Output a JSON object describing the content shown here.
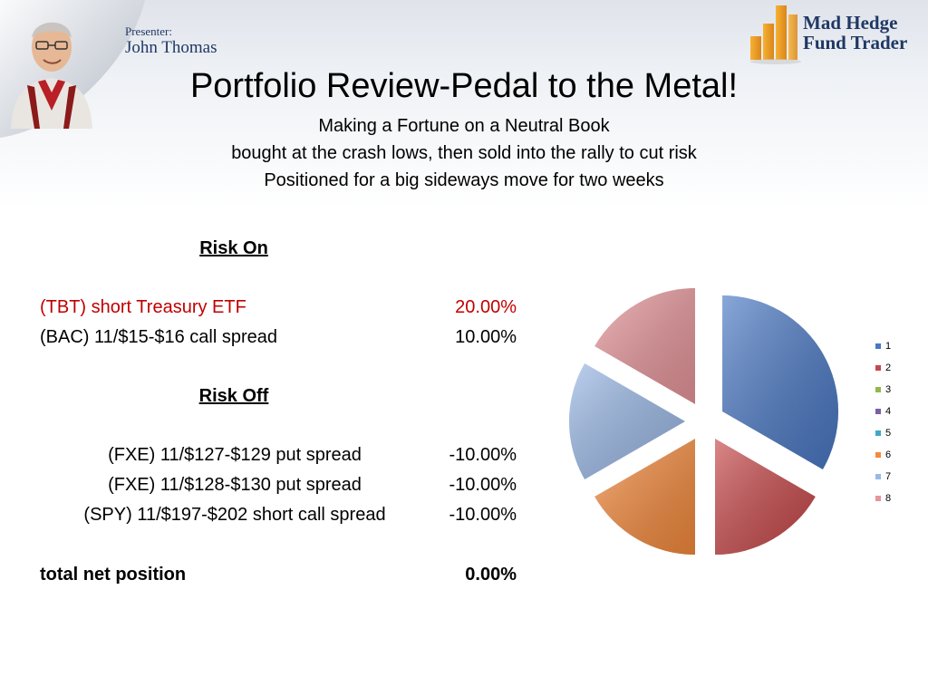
{
  "header": {
    "presenter_label": "Presenter:",
    "presenter_name": "John Thomas",
    "logo_line1": "Mad Hedge",
    "logo_line2": "Fund Trader"
  },
  "title": "Portfolio Review-Pedal to the Metal!",
  "subtitles": [
    "Making a Fortune on a Neutral Book",
    "bought at the crash lows, then sold into the rally to cut risk",
    "Positioned for a big sideways move for two weeks"
  ],
  "risk_on": {
    "header": "Risk On",
    "rows": [
      {
        "label": "(TBT) short Treasury ETF",
        "value": "20.00%"
      },
      {
        "label": "(BAC) 11/$15-$16 call spread",
        "value": "10.00%"
      }
    ]
  },
  "risk_off": {
    "header": "Risk Off",
    "rows": [
      {
        "label": "(FXE) 11/$127-$129 put spread",
        "value": "-10.00%"
      },
      {
        "label": "(FXE) 11/$128-$130 put spread",
        "value": "-10.00%"
      },
      {
        "label": "(SPY) 11/$197-$202 short call spread",
        "value": "-10.00%"
      }
    ]
  },
  "total": {
    "label": "total net position",
    "value": "0.00%"
  },
  "colors": {
    "red_text": "#c00000",
    "brand_navy": "#1f3864"
  },
  "chart_data": {
    "type": "pie",
    "categories": [
      "1",
      "2",
      "3",
      "4",
      "5",
      "6",
      "7",
      "8"
    ],
    "values": [
      20,
      10,
      0,
      0,
      0,
      10,
      10,
      10
    ],
    "colors": [
      "#4a78c4",
      "#c7484a",
      "#93b84c",
      "#7c5ea8",
      "#40a8c4",
      "#f48a3c",
      "#9ab8e6",
      "#e6959a"
    ],
    "legend_position": "right",
    "exploded": true
  }
}
